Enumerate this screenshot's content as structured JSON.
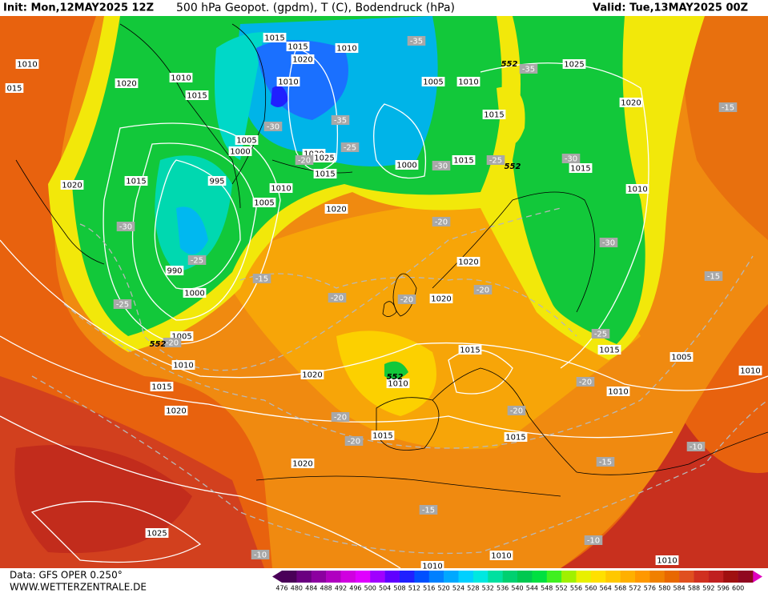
{
  "header": {
    "init": "Init: Mon,12MAY2025 12Z",
    "title": "500 hPa Geopot. (gpdm), T (C), Bodendruck (hPa)",
    "valid": "Valid: Tue,13MAY2025 00Z"
  },
  "footer": {
    "source": "Data: GFS OPER 0.250°",
    "site": "WWW.WETTERZENTRALE.DE"
  },
  "pressure_labels": [
    1015,
    1015,
    1020,
    1010,
    1010,
    1020,
    1010,
    1015,
    1010,
    1005,
    1010,
    1025,
    1020,
    1015,
    1005,
    1000,
    1030,
    1025,
    1015,
    995,
    1015,
    1020,
    1010,
    1005,
    1000,
    1015,
    1015,
    1010,
    1020,
    1020,
    990,
    1000,
    1020,
    1005,
    1010,
    1015,
    1015,
    1005,
    1010,
    1020,
    1010,
    1015,
    1010,
    1020,
    1015,
    1015,
    1020,
    1025,
    1010,
    1010,
    "015",
    1010
  ],
  "temperature_labels": [
    -35,
    -35,
    -30,
    -35,
    -25,
    -20,
    -30,
    -25,
    -30,
    -30,
    -25,
    -15,
    -20,
    -30,
    -20,
    -20,
    -20,
    -25,
    -20,
    -25,
    -15,
    -15,
    -20,
    -20,
    -20,
    -20,
    -15,
    -10,
    -15,
    -10,
    -10
  ],
  "geopotential_labels": [
    552,
    552,
    552,
    552
  ],
  "colorbar": [
    {
      "value": 476,
      "color": "#4a0058"
    },
    {
      "value": 480,
      "color": "#6a0080"
    },
    {
      "value": 484,
      "color": "#8c00a0"
    },
    {
      "value": 488,
      "color": "#b000c0"
    },
    {
      "value": 492,
      "color": "#d000e0"
    },
    {
      "value": 496,
      "color": "#e000ff"
    },
    {
      "value": 500,
      "color": "#a000ff"
    },
    {
      "value": 504,
      "color": "#6000ff"
    },
    {
      "value": 508,
      "color": "#2020ff"
    },
    {
      "value": 512,
      "color": "#0050ff"
    },
    {
      "value": 516,
      "color": "#0080ff"
    },
    {
      "value": 520,
      "color": "#00a8ff"
    },
    {
      "value": 524,
      "color": "#00d0ff"
    },
    {
      "value": 528,
      "color": "#00e8e0"
    },
    {
      "value": 532,
      "color": "#00e0a0"
    },
    {
      "value": 536,
      "color": "#00d070"
    },
    {
      "value": 540,
      "color": "#00c850"
    },
    {
      "value": 544,
      "color": "#00e040"
    },
    {
      "value": 548,
      "color": "#40f020"
    },
    {
      "value": 552,
      "color": "#a0f000"
    },
    {
      "value": 556,
      "color": "#e8f000"
    },
    {
      "value": 560,
      "color": "#ffe000"
    },
    {
      "value": 564,
      "color": "#ffc800"
    },
    {
      "value": 568,
      "color": "#ffb000"
    },
    {
      "value": 572,
      "color": "#ff9800"
    },
    {
      "value": 576,
      "color": "#f08000"
    },
    {
      "value": 580,
      "color": "#e86800"
    },
    {
      "value": 584,
      "color": "#e05020"
    },
    {
      "value": 588,
      "color": "#d03020"
    },
    {
      "value": 592,
      "color": "#c02020"
    },
    {
      "value": 596,
      "color": "#a01010"
    },
    {
      "value": 600,
      "color": "#900820"
    }
  ]
}
